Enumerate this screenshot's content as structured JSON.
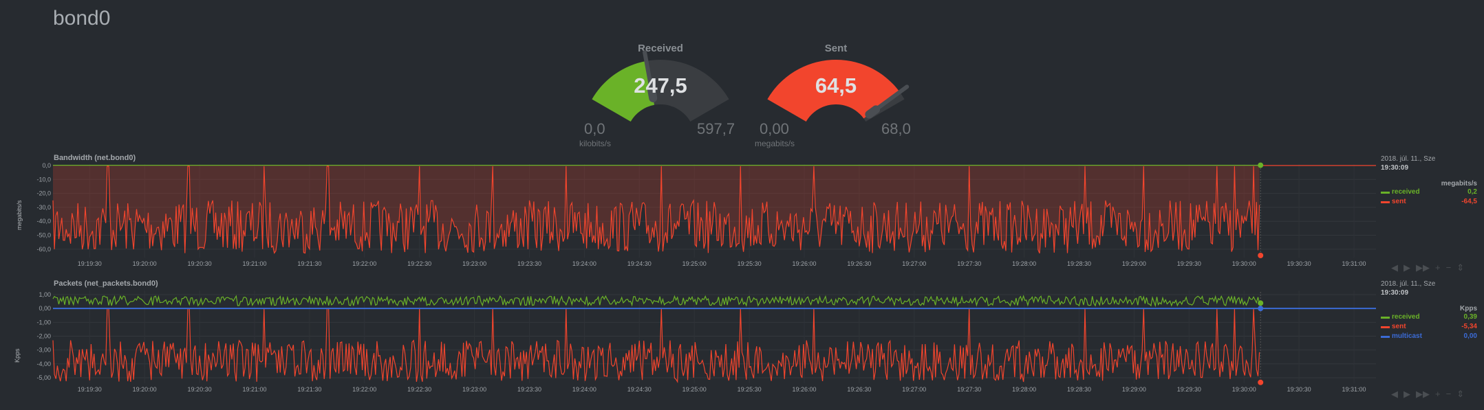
{
  "page": {
    "title": "bond0"
  },
  "colors": {
    "received": "#6ab228",
    "sent": "#f2452d",
    "multicast": "#3b6bd6",
    "gauge_bg": "#3a3d41"
  },
  "gauges": [
    {
      "title": "Received",
      "value": "247,5",
      "min": "0,0",
      "max": "597,7",
      "units": "kilobits/s",
      "fraction": 0.414,
      "color": "#6ab228"
    },
    {
      "title": "Sent",
      "value": "64,5",
      "min": "0,00",
      "max": "68,0",
      "units": "megabits/s",
      "fraction": 0.948,
      "color": "#f2452d"
    }
  ],
  "time_ticks": [
    "19:19:30",
    "19:20:00",
    "19:20:30",
    "19:21:00",
    "19:21:30",
    "19:22:00",
    "19:22:30",
    "19:23:00",
    "19:23:30",
    "19:24:00",
    "19:24:30",
    "19:25:00",
    "19:25:30",
    "19:26:00",
    "19:26:30",
    "19:27:00",
    "19:27:30",
    "19:28:00",
    "19:28:30",
    "19:29:00",
    "19:29:30",
    "19:30:00",
    "19:30:30",
    "19:31:00"
  ],
  "toolbar": {
    "icons": [
      "◀",
      "▶",
      "▶▶",
      "+",
      "−",
      "⇕"
    ]
  },
  "chart_data": [
    {
      "type": "area",
      "title": "Bandwidth (net.bond0)",
      "ylabel": "megabits/s",
      "y_ticks": [
        "0,0",
        "-10,0",
        "-20,0",
        "-30,0",
        "-40,0",
        "-50,0",
        "-60,0"
      ],
      "ylim": [
        -65,
        0
      ],
      "spike_times": [
        "19:19:40",
        "19:20:24",
        "19:21:05",
        "19:21:40",
        "19:22:30",
        "19:23:10",
        "19:23:50",
        "19:24:42",
        "19:25:25",
        "19:26:05",
        "19:27:30",
        "19:28:33",
        "19:29:05",
        "19:29:45",
        "19:29:55",
        "19:30:05"
      ],
      "legend": {
        "date": "2018. júl. 11., Sze",
        "time": "19:30:09",
        "units": "megabits/s",
        "series": [
          {
            "name": "received",
            "value": "0,2",
            "color": "#6ab228"
          },
          {
            "name": "sent",
            "value": "-64,5",
            "color": "#f2452d"
          }
        ]
      },
      "series": [
        {
          "name": "received",
          "baseline": 0.2
        },
        {
          "name": "sent",
          "typical_range": [
            -65,
            -25
          ]
        }
      ]
    },
    {
      "type": "line",
      "title": "Packets (net_packets.bond0)",
      "ylabel": "Kpps",
      "y_ticks": [
        "1,00",
        "0,00",
        "-1,00",
        "-2,00",
        "-3,00",
        "-4,00",
        "-5,00"
      ],
      "ylim": [
        -5.3,
        1.2
      ],
      "spike_times": [
        "19:19:40",
        "19:20:24",
        "19:21:05",
        "19:21:40",
        "19:22:30",
        "19:23:10",
        "19:23:50",
        "19:24:42",
        "19:25:25",
        "19:26:05",
        "19:27:30",
        "19:28:33",
        "19:29:05",
        "19:29:45",
        "19:29:55",
        "19:30:05"
      ],
      "legend": {
        "date": "2018. júl. 11., Sze",
        "time": "19:30:09",
        "units": "Kpps",
        "series": [
          {
            "name": "received",
            "value": "0,39",
            "color": "#6ab228"
          },
          {
            "name": "sent",
            "value": "-5,34",
            "color": "#f2452d"
          },
          {
            "name": "multicast",
            "value": "0,00",
            "color": "#3b6bd6"
          }
        ]
      },
      "series": [
        {
          "name": "received",
          "typical_range": [
            0.2,
            0.9
          ]
        },
        {
          "name": "sent",
          "typical_range": [
            -5.3,
            -2.3
          ]
        },
        {
          "name": "multicast",
          "baseline": 0.0
        }
      ]
    }
  ]
}
